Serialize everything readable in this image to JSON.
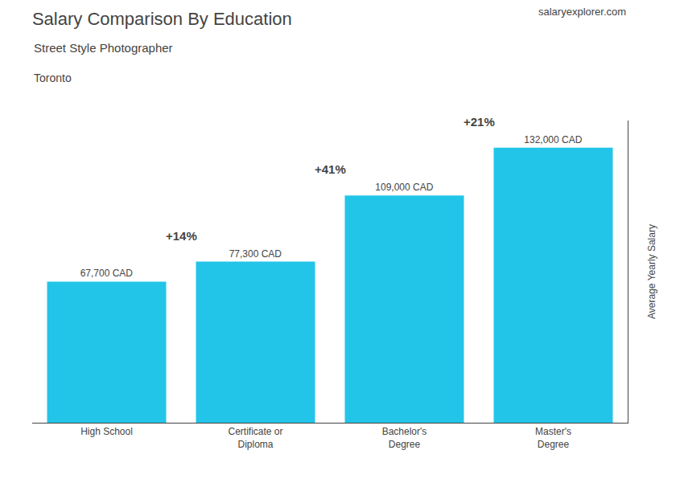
{
  "chart_data": {
    "type": "bar",
    "title": "Salary Comparison By Education",
    "subtitle": "Street Style Photographer",
    "notes": [
      "Toronto",
      "salaryexplorer.com"
    ],
    "ylabel": "Average Yearly Salary",
    "categories": [
      "High School",
      "Certificate or\nDiploma",
      "Bachelor's\nDegree",
      "Master's\nDegree"
    ],
    "values": [
      67700,
      77300,
      109000,
      132000
    ],
    "value_labels": [
      "67,700 CAD",
      "77,300 CAD",
      "109,000 CAD",
      "132,000 CAD"
    ],
    "change_labels": [
      "+14%",
      "+41%",
      "+21%"
    ],
    "color": "#22c5e8",
    "ylim": [
      0,
      145000
    ],
    "grid": false,
    "data_labels": true,
    "tick_labels": "x"
  }
}
